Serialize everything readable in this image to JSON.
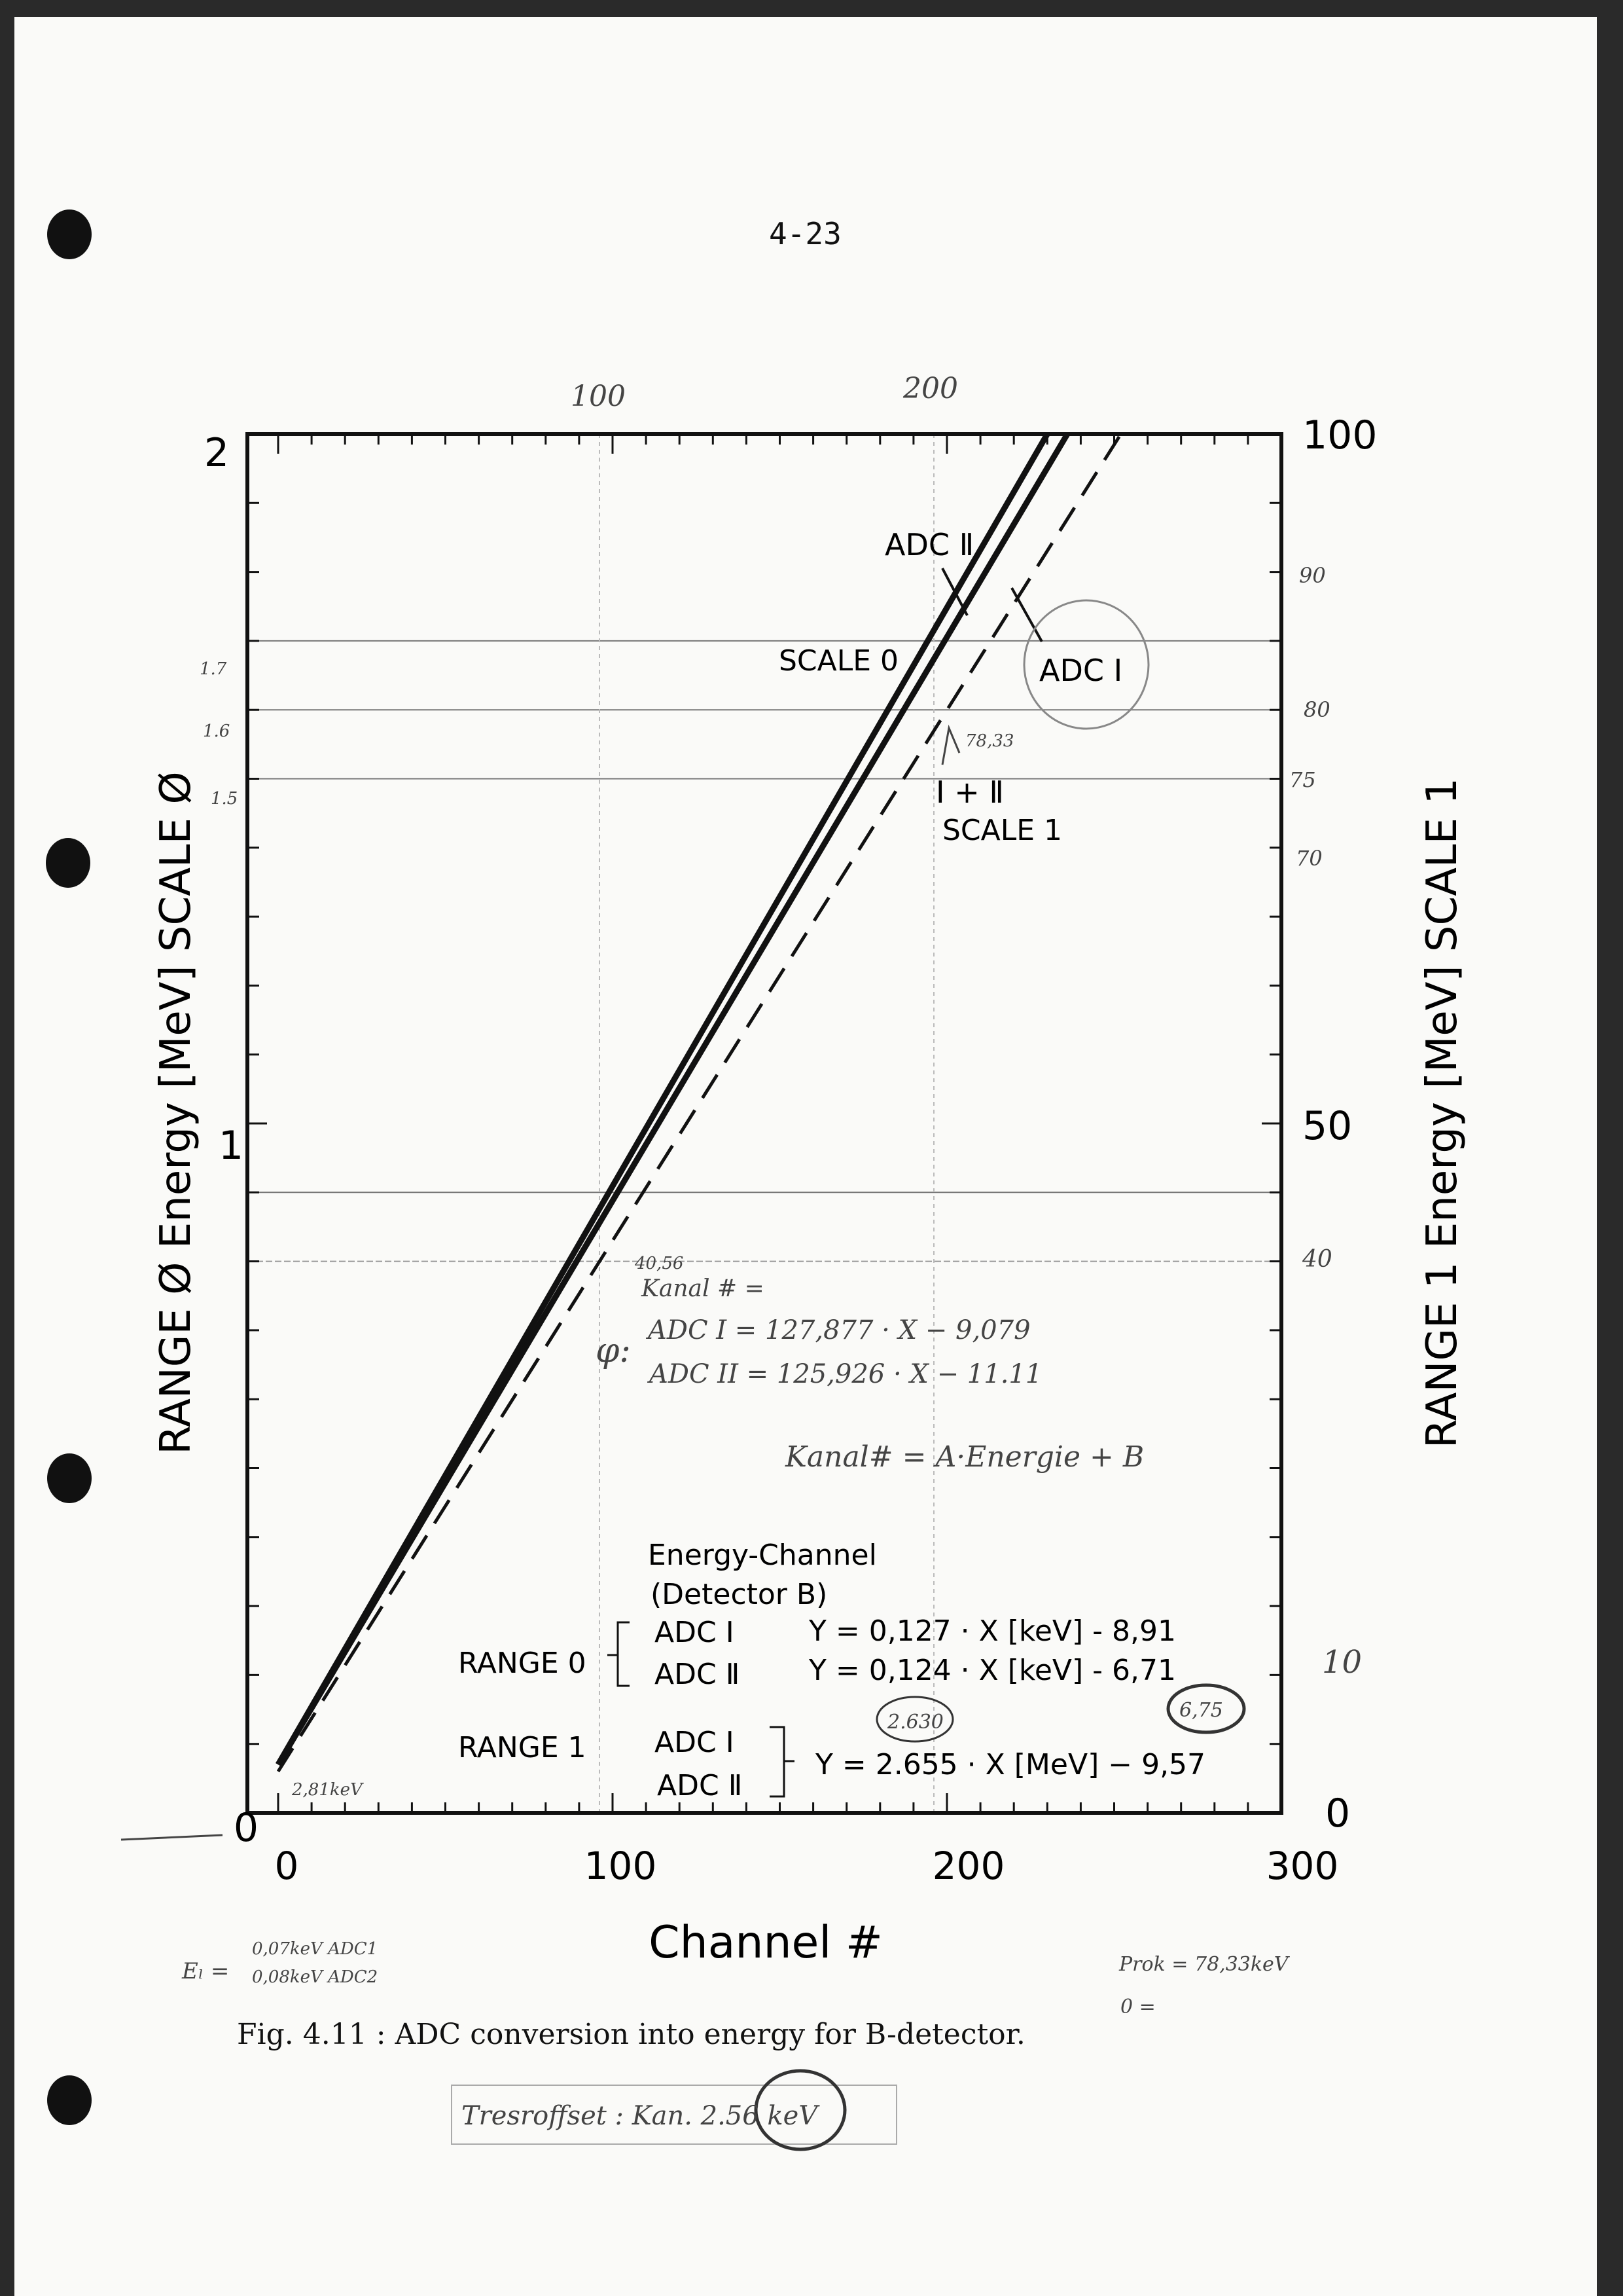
{
  "page_number": "4-23",
  "caption": "Fig. 4.11 :   ADC conversion into energy for B-detector.",
  "chart_data": {
    "type": "line",
    "xlabel": "Channel #",
    "ylabel_left": "RANGE Ø  Energy [MeV]  SCALE Ø",
    "ylabel_right": "RANGE 1  Energy [MeV]  SCALE 1",
    "xlim": [
      0,
      300
    ],
    "ylim_left": [
      0,
      2
    ],
    "ylim_right": [
      0,
      100
    ],
    "x_ticks": [
      "0",
      "100",
      "200",
      "300"
    ],
    "y_ticks_left": [
      "0",
      "1",
      "2"
    ],
    "y_ticks_right": [
      "0",
      "50",
      "100"
    ],
    "series": [
      {
        "name": "ADC Ⅰ",
        "style": "solid",
        "x": [
          0,
          230
        ],
        "y": [
          0.07,
          2.0
        ]
      },
      {
        "name": "ADC Ⅱ",
        "style": "solid",
        "x": [
          0,
          236
        ],
        "y": [
          0.07,
          2.0
        ]
      },
      {
        "name": "Ⅰ + Ⅱ",
        "style": "dashed",
        "x": [
          0,
          252
        ],
        "y": [
          0.06,
          2.0
        ]
      }
    ],
    "annotations": {
      "adc2": "ADC Ⅱ",
      "scale0": "SCALE 0",
      "adc1": "ADC Ⅰ",
      "i_plus_ii": "Ⅰ + Ⅱ",
      "scale1": "SCALE 1",
      "energy_channel_1": "Energy-Channel",
      "energy_channel_2": "(Detector B)",
      "range0": "RANGE 0",
      "range1": "RANGE 1",
      "r0_adc1": "ADC Ⅰ",
      "r0_adc2": "ADC Ⅱ",
      "r0_eq1": "Y  =  0,127  ·  X  [keV]  -  8,91",
      "r0_eq2": "Y  =  0,124  ·  X  [keV]  -  6,71",
      "r1_adc1": "ADC Ⅰ",
      "r1_adc2": "ADC Ⅱ",
      "r1_eq": "Y  =  2.655  ·  X  [MeV] − 9,57"
    },
    "handwritten": {
      "top_100": "100",
      "top_200": "200",
      "left_17": "1.7",
      "left_16": "1.6",
      "left_15": "1.5",
      "right_90": "90",
      "right_80": "80",
      "right_75": "75",
      "right_70": "70",
      "right_40": "40",
      "right_10": "10",
      "mark_7833": "78,33",
      "mark_4056": "40,56",
      "kanal": "Kanal # =",
      "phi": "φ:",
      "adc1_eq": "ADC I  = 127,877 · X − 9,079",
      "adc2_eq": "ADC II  = 125,926 · X − 11.11",
      "kanal_eq": "Kanal# = A·Energie + B",
      "circ_2630": "2.630",
      "circ_675": "6,75",
      "offset_281": "2,81keV",
      "el_1": "0,07keV ADC1",
      "el_2": "0,08keV ADC2",
      "el_label": "Eₗ =",
      "prok_1": "Prok = 78,33keV",
      "prok_2": "0 =",
      "rausch": "Tresroffset : Kan. 2.56 keV"
    }
  }
}
